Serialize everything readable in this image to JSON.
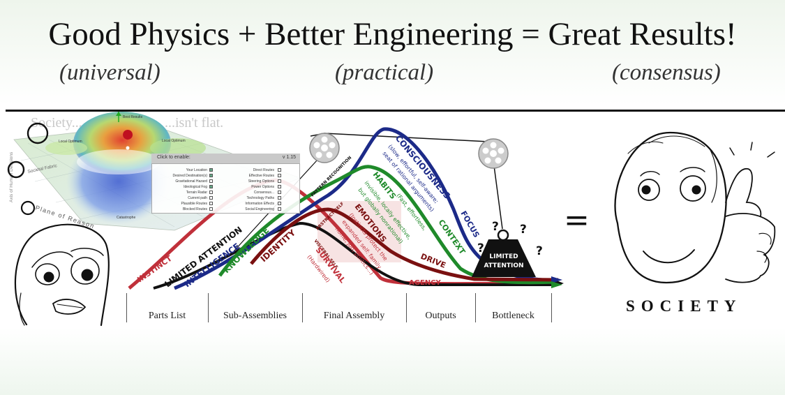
{
  "header": {
    "title": "Good Physics + Better Engineering = Great Results!",
    "sub_left": "(universal)",
    "sub_mid": "(practical)",
    "sub_right": "(consensus)"
  },
  "landscape": {
    "text_left": "Society...",
    "text_right": "...isn't flat.",
    "best_label": "Best Results",
    "local_opt_left": "Local Optimum",
    "local_opt_right": "Local Optimum",
    "societal_fabric": "Societal Fabric",
    "plane_of_reason": "Plane of Reason",
    "catastrophe": "Catastrophe",
    "axis_label": "Axis of Human Decisions"
  },
  "overlay": {
    "header": "Click to enable:",
    "version": "v 1.15",
    "left_items": [
      "Your Location",
      "Desired Destination(s)",
      "Gravitational Hazard",
      "Ideological Fog",
      "Terrain Radar",
      "Current path",
      "Plausible Routes",
      "Blocked Routes"
    ],
    "right_items": [
      "Direct Routes",
      "Effective Routes",
      "Steering Options",
      "Power Options",
      "Consensus...",
      "Technology Paths",
      "Information Effects",
      "Social Engineering"
    ]
  },
  "flow": {
    "instinct": "INSTINCT",
    "limited_attention": "LIMITED ATTENTION",
    "intelligence": "INTELLIGENCE",
    "knowledge": "KNOWLEDGE",
    "identity": "IDENTITY",
    "consciousness": "CONSCIOUSNESS",
    "consciousness_desc1": "(slow, effortful, self-aware;",
    "consciousness_desc2": "seat of rational arguments)",
    "pattern_recognition": "PATTERN RECOGNITION",
    "habits": "HABITS",
    "habits_desc1": "(Fast, effortless,",
    "habits_desc2": "invisible, locally effective,",
    "habits_desc3": "but globally nonrational)",
    "abstract_self": "ABSTRACT SELF",
    "emotions": "EMOTIONS",
    "emotions_desc1": "(Instincts protect the",
    "emotions_desc2": "expanded self: family,",
    "emotions_desc3": "home, job, politics...)",
    "visceral_self": "VISCERAL SELF",
    "survival": "SURVIVAL",
    "hardwired": "(Hardwired)",
    "focus": "FOCUS",
    "context": "CONTEXT",
    "drive": "DRIVE",
    "agency": "AGENCY",
    "weight_line1": "LIMITED",
    "weight_line2": "ATTENTION",
    "question": "?"
  },
  "stages": [
    "Parts List",
    "Sub-Assemblies",
    "Final Assembly",
    "Outputs",
    "Bottleneck"
  ],
  "equals": "=",
  "society_label": "SOCIETY",
  "colors": {
    "red": "#c0303a",
    "dark_red": "#7a1010",
    "green": "#1f8a2a",
    "navy": "#1c2a88",
    "black": "#111111"
  }
}
